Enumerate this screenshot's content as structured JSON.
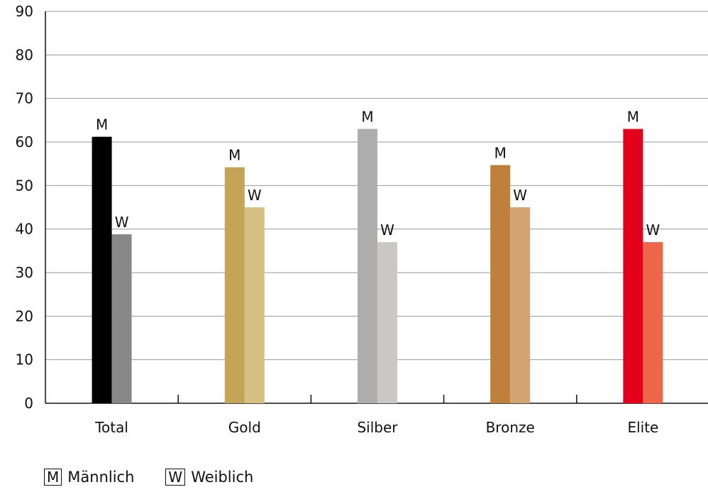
{
  "chart_data": {
    "type": "bar",
    "categories": [
      "Total",
      "Gold",
      "Silber",
      "Bronze",
      "Elite"
    ],
    "series": [
      {
        "name": "Männlich",
        "key": "M",
        "values": [
          61.2,
          54.2,
          63,
          54.7,
          63
        ]
      },
      {
        "name": "Weiblich",
        "key": "W",
        "values": [
          38.8,
          45,
          37,
          45,
          37
        ]
      }
    ],
    "colors": {
      "Total": [
        "#000000",
        "#878887"
      ],
      "Gold": [
        "#c4a456",
        "#d6bf82"
      ],
      "Silber": [
        "#aeadac",
        "#c9c8c6"
      ],
      "Bronze": [
        "#be803b",
        "#d3a472"
      ],
      "Elite": [
        "#e3001b",
        "#ec674a"
      ]
    },
    "ylim": [
      0,
      90
    ],
    "yticks": [
      0,
      10,
      20,
      30,
      40,
      50,
      60,
      70,
      80,
      90
    ],
    "grid": true,
    "legend_position": "bottom-left"
  },
  "legend": {
    "items": [
      {
        "key": "M",
        "label": "Männlich"
      },
      {
        "key": "W",
        "label": "Weiblich"
      }
    ]
  }
}
